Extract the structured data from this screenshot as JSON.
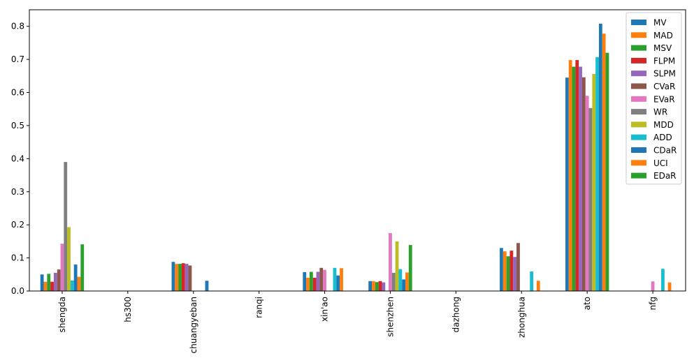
{
  "chart_data": {
    "type": "bar",
    "categories": [
      "shengda",
      "hs300",
      "chuangyeban",
      "ranqi",
      "xin'ao",
      "shenzhen",
      "dazhong",
      "zhonghua",
      "ato",
      "nfg"
    ],
    "ylim": [
      0,
      0.85
    ],
    "yticks": [
      0.0,
      0.1,
      0.2,
      0.3,
      0.4,
      0.5,
      0.6,
      0.7,
      0.8
    ],
    "ytick_labels": [
      "0.0",
      "0.1",
      "0.2",
      "0.3",
      "0.4",
      "0.5",
      "0.6",
      "0.7",
      "0.8"
    ],
    "grid": false,
    "legend_position": "top-right",
    "series": [
      {
        "name": "MV",
        "color": "#1f77b4",
        "values": [
          0.05,
          0,
          0.088,
          0,
          0.057,
          0.03,
          0,
          0.13,
          0.645,
          0
        ]
      },
      {
        "name": "MAD",
        "color": "#ff7f0e",
        "values": [
          0.028,
          0,
          0.082,
          0,
          0.04,
          0.03,
          0,
          0.12,
          0.698,
          0
        ]
      },
      {
        "name": "MSV",
        "color": "#2ca02c",
        "values": [
          0.052,
          0,
          0.082,
          0,
          0.058,
          0.027,
          0,
          0.105,
          0.678,
          0
        ]
      },
      {
        "name": "FLPM",
        "color": "#d62728",
        "values": [
          0.028,
          0,
          0.084,
          0,
          0.04,
          0.03,
          0,
          0.122,
          0.698,
          0
        ]
      },
      {
        "name": "SLPM",
        "color": "#9467bd",
        "values": [
          0.055,
          0,
          0.082,
          0,
          0.058,
          0.026,
          0,
          0.103,
          0.678,
          0
        ]
      },
      {
        "name": "CVaR",
        "color": "#8c564b",
        "values": [
          0.065,
          0,
          0.077,
          0,
          0.07,
          0.0,
          0,
          0.145,
          0.646,
          0
        ]
      },
      {
        "name": "EVaR",
        "color": "#e377c2",
        "values": [
          0.143,
          0,
          0,
          0,
          0.064,
          0.175,
          0,
          0,
          0.59,
          0.029
        ]
      },
      {
        "name": "WR",
        "color": "#7f7f7f",
        "values": [
          0.39,
          0,
          0,
          0,
          0,
          0.055,
          0,
          0,
          0.553,
          0
        ]
      },
      {
        "name": "MDD",
        "color": "#bcbd22",
        "values": [
          0.193,
          0,
          0,
          0,
          0,
          0.15,
          0,
          0,
          0.656,
          0
        ]
      },
      {
        "name": "ADD",
        "color": "#17becf",
        "values": [
          0.032,
          0,
          0,
          0,
          0.07,
          0.066,
          0,
          0.059,
          0.707,
          0.067
        ]
      },
      {
        "name": "CDaR",
        "color": "#1f77b4",
        "values": [
          0.08,
          0,
          0.031,
          0,
          0.047,
          0.035,
          0,
          0,
          0.808,
          0
        ]
      },
      {
        "name": "UCI",
        "color": "#ff7f0e",
        "values": [
          0.043,
          0,
          0,
          0,
          0.069,
          0.056,
          0,
          0.031,
          0.778,
          0.026
        ]
      },
      {
        "name": "EDaR",
        "color": "#2ca02c",
        "values": [
          0.141,
          0,
          0,
          0,
          0,
          0.139,
          0,
          0,
          0.72,
          0
        ]
      }
    ]
  }
}
